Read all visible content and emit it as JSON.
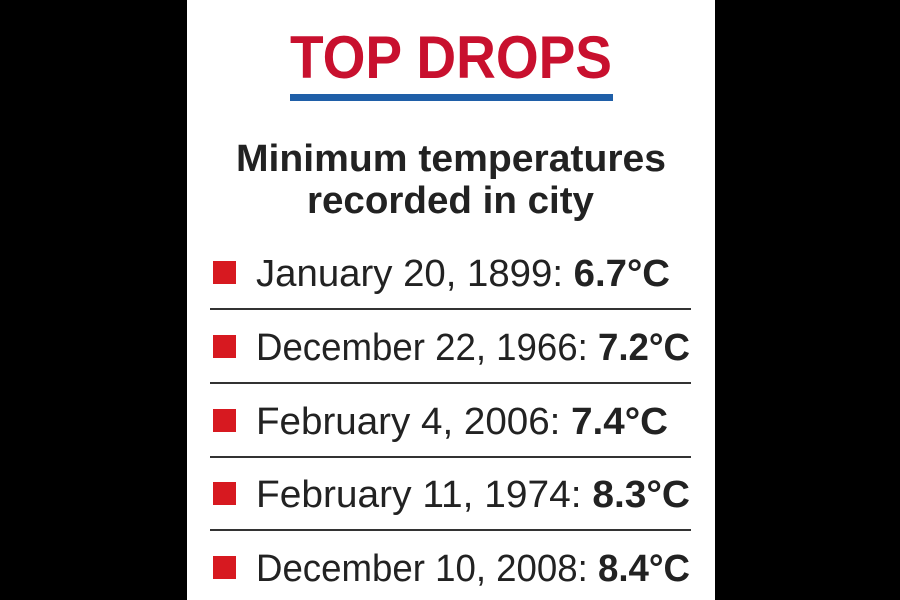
{
  "header": {
    "title": "TOP DROPS",
    "subtitle": [
      "Minimum temperatures",
      "recorded in city"
    ]
  },
  "items": [
    {
      "date": "January 20, 1899:",
      "value": "6.7°C"
    },
    {
      "date": "December 22, 1966:",
      "value": "7.2°C"
    },
    {
      "date": "February 4, 2006:",
      "value": "7.4°C"
    },
    {
      "date": "February 11, 1974:",
      "value": "8.3°C"
    },
    {
      "date": "December 10, 2008:",
      "value": "8.4°C"
    }
  ]
}
